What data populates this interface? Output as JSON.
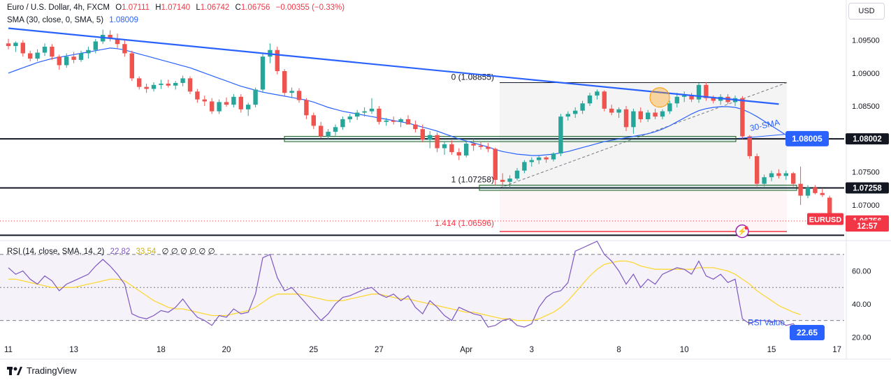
{
  "header": {
    "symbol": "Euro / U.S. Dollar, 4h, FXCM",
    "open_label": "O",
    "open": "1.07111",
    "high_label": "H",
    "high": "1.07140",
    "low_label": "L",
    "low": "1.06742",
    "close_label": "C",
    "close": "1.06756",
    "change": "−0.00355 (−0.33%)",
    "sma_label": "SMA (30, close, 0, SMA, 5)",
    "sma_value": "1.08009",
    "rsi_label": "RSI (14, close, SMA, 14, 2)",
    "rsi_value": "22.82",
    "rsi_ma_value": "33.54",
    "rsi_extra": "∅ ∅ ∅ ∅ ∅ ∅"
  },
  "currency_button": "USD",
  "brand": "TradingView",
  "colors": {
    "up": "#26a69a",
    "down": "#ef5350",
    "sma": "#2962ff",
    "trendline": "#2962ff",
    "rsi": "#7e57c2",
    "rsi_ma": "#fdd835",
    "fib_line": "#f23645"
  },
  "chart_data": [
    {
      "type": "candlestick",
      "title": "Euro / U.S. Dollar, 4h, FXCM",
      "x_tick_labels": [
        "11",
        "13",
        "18",
        "20",
        "25",
        "27",
        "Apr",
        "3",
        "8",
        "10",
        "15",
        "17"
      ],
      "y_tick_labels": [
        "1.09500",
        "1.09000",
        "1.08500",
        "1.07500",
        "1.07000"
      ],
      "ylim": [
        1.0648,
        1.0995
      ],
      "candles": [
        [
          1.0945,
          1.0952,
          1.0936,
          1.0941
        ],
        [
          1.0941,
          1.0948,
          1.0932,
          1.0946
        ],
        [
          1.0946,
          1.095,
          1.0925,
          1.093
        ],
        [
          1.093,
          1.0934,
          1.0918,
          1.0922
        ],
        [
          1.0922,
          1.0936,
          1.0918,
          1.0931
        ],
        [
          1.0931,
          1.0945,
          1.0926,
          1.094
        ],
        [
          1.094,
          1.0944,
          1.092,
          1.0925
        ],
        [
          1.0925,
          1.0928,
          1.0905,
          1.0912
        ],
        [
          1.0912,
          1.093,
          1.0908,
          1.0925
        ],
        [
          1.0925,
          1.0932,
          1.0915,
          1.092
        ],
        [
          1.092,
          1.0934,
          1.0917,
          1.093
        ],
        [
          1.093,
          1.094,
          1.0922,
          1.0935
        ],
        [
          1.0935,
          1.0952,
          1.093,
          1.0948
        ],
        [
          1.0948,
          1.0966,
          1.0944,
          1.0958
        ],
        [
          1.0958,
          1.0965,
          1.0948,
          1.0952
        ],
        [
          1.0952,
          1.096,
          1.0938,
          1.0944
        ],
        [
          1.0944,
          1.095,
          1.0925,
          1.093
        ],
        [
          1.093,
          1.0934,
          1.0888,
          1.0892
        ],
        [
          1.0892,
          1.0895,
          1.0875,
          1.0879
        ],
        [
          1.0879,
          1.0884,
          1.087,
          1.0876
        ],
        [
          1.0876,
          1.0886,
          1.0872,
          1.0882
        ],
        [
          1.0882,
          1.089,
          1.0876,
          1.0884
        ],
        [
          1.0884,
          1.089,
          1.0878,
          1.0881
        ],
        [
          1.0881,
          1.0888,
          1.0875,
          1.0885
        ],
        [
          1.0885,
          1.0896,
          1.088,
          1.0892
        ],
        [
          1.0892,
          1.0895,
          1.0868,
          1.0872
        ],
        [
          1.0872,
          1.0876,
          1.0855,
          1.086
        ],
        [
          1.086,
          1.0866,
          1.085,
          1.0857
        ],
        [
          1.0857,
          1.0862,
          1.0838,
          1.0842
        ],
        [
          1.0842,
          1.086,
          1.0838,
          1.0856
        ],
        [
          1.0856,
          1.0863,
          1.0849,
          1.0852
        ],
        [
          1.0852,
          1.0868,
          1.0848,
          1.0864
        ],
        [
          1.0864,
          1.0868,
          1.084,
          1.0845
        ],
        [
          1.0845,
          1.0855,
          1.0835,
          1.0852
        ],
        [
          1.0852,
          1.0878,
          1.0848,
          1.0875
        ],
        [
          1.0875,
          1.093,
          1.087,
          1.0925
        ],
        [
          1.0925,
          1.0945,
          1.0915,
          1.0935
        ],
        [
          1.0935,
          1.094,
          1.0898,
          1.0903
        ],
        [
          1.0903,
          1.0906,
          1.0865,
          1.087
        ],
        [
          1.087,
          1.0878,
          1.0862,
          1.0873
        ],
        [
          1.0873,
          1.0877,
          1.0855,
          1.0859
        ],
        [
          1.0859,
          1.0862,
          1.083,
          1.0836
        ],
        [
          1.0836,
          1.084,
          1.0815,
          1.082
        ],
        [
          1.082,
          1.0826,
          1.0801,
          1.0804
        ],
        [
          1.0804,
          1.0815,
          1.08,
          1.0811
        ],
        [
          1.0811,
          1.0822,
          1.0805,
          1.0818
        ],
        [
          1.0818,
          1.0834,
          1.0814,
          1.083
        ],
        [
          1.083,
          1.0838,
          1.0825,
          1.0834
        ],
        [
          1.0834,
          1.0844,
          1.0829,
          1.084
        ],
        [
          1.084,
          1.0848,
          1.0834,
          1.0842
        ],
        [
          1.0842,
          1.0862,
          1.0838,
          1.0846
        ],
        [
          1.0846,
          1.085,
          1.0822,
          1.0826
        ],
        [
          1.0826,
          1.0832,
          1.082,
          1.0828
        ],
        [
          1.0828,
          1.0834,
          1.0822,
          1.0826
        ],
        [
          1.0826,
          1.0832,
          1.0818,
          1.083
        ],
        [
          1.083,
          1.0836,
          1.0824,
          1.0822
        ],
        [
          1.0822,
          1.0828,
          1.081,
          1.0815
        ],
        [
          1.0815,
          1.0822,
          1.0795,
          1.0799
        ],
        [
          1.0799,
          1.0812,
          1.0786,
          1.0806
        ],
        [
          1.0806,
          1.081,
          1.078,
          1.0786
        ],
        [
          1.0786,
          1.0796,
          1.0776,
          1.0792
        ],
        [
          1.0792,
          1.0798,
          1.0776,
          1.078
        ],
        [
          1.078,
          1.0786,
          1.0768,
          1.0775
        ],
        [
          1.0775,
          1.0798,
          1.0772,
          1.0793
        ],
        [
          1.0793,
          1.08,
          1.0782,
          1.079
        ],
        [
          1.079,
          1.0795,
          1.0784,
          1.0788
        ],
        [
          1.0788,
          1.0794,
          1.078,
          1.0785
        ],
        [
          1.0785,
          1.0787,
          1.073,
          1.0738
        ],
        [
          1.0738,
          1.0748,
          1.0728,
          1.0735
        ],
        [
          1.0735,
          1.0745,
          1.0726,
          1.074
        ],
        [
          1.074,
          1.0756,
          1.0737,
          1.0752
        ],
        [
          1.0752,
          1.0768,
          1.0748,
          1.0765
        ],
        [
          1.0765,
          1.0772,
          1.0758,
          1.0768
        ],
        [
          1.0768,
          1.0776,
          1.0762,
          1.0772
        ],
        [
          1.0772,
          1.0774,
          1.0764,
          1.0769
        ],
        [
          1.0769,
          1.078,
          1.0766,
          1.0778
        ],
        [
          1.0778,
          1.0838,
          1.0774,
          1.0834
        ],
        [
          1.0834,
          1.0842,
          1.0828,
          1.0838
        ],
        [
          1.0838,
          1.0848,
          1.0832,
          1.0843
        ],
        [
          1.0843,
          1.0858,
          1.0838,
          1.0854
        ],
        [
          1.0854,
          1.087,
          1.085,
          1.0866
        ],
        [
          1.0866,
          1.0875,
          1.086,
          1.0872
        ],
        [
          1.0872,
          1.0874,
          1.0842,
          1.0846
        ],
        [
          1.0846,
          1.0852,
          1.0836,
          1.084
        ],
        [
          1.084,
          1.0848,
          1.0832,
          1.0845
        ],
        [
          1.0845,
          1.085,
          1.0812,
          1.0818
        ],
        [
          1.0818,
          1.0846,
          1.0808,
          1.0842
        ],
        [
          1.0842,
          1.0848,
          1.0825,
          1.083
        ],
        [
          1.083,
          1.0844,
          1.0826,
          1.084
        ],
        [
          1.084,
          1.0846,
          1.083,
          1.0834
        ],
        [
          1.0834,
          1.0845,
          1.083,
          1.0842
        ],
        [
          1.0842,
          1.0858,
          1.0838,
          1.0854
        ],
        [
          1.0854,
          1.087,
          1.0848,
          1.0864
        ],
        [
          1.0864,
          1.0872,
          1.0856,
          1.0866
        ],
        [
          1.0866,
          1.087,
          1.0856,
          1.086
        ],
        [
          1.086,
          1.0885,
          1.0855,
          1.0882
        ],
        [
          1.0882,
          1.0886,
          1.0858,
          1.0862
        ],
        [
          1.0862,
          1.0866,
          1.0854,
          1.0858
        ],
        [
          1.0858,
          1.0868,
          1.0852,
          1.0864
        ],
        [
          1.0864,
          1.0868,
          1.0853,
          1.0856
        ],
        [
          1.0856,
          1.0866,
          1.085,
          1.0862
        ],
        [
          1.0862,
          1.0865,
          1.08,
          1.0804
        ],
        [
          1.0804,
          1.0806,
          1.077,
          1.0774
        ],
        [
          1.0774,
          1.0778,
          1.0728,
          1.0732
        ],
        [
          1.0732,
          1.0746,
          1.0728,
          1.0742
        ],
        [
          1.0742,
          1.0752,
          1.0736,
          1.0748
        ],
        [
          1.0748,
          1.0754,
          1.074,
          1.0744
        ],
        [
          1.0744,
          1.0752,
          1.0738,
          1.0748
        ],
        [
          1.0748,
          1.075,
          1.0728,
          1.0732
        ],
        [
          1.0732,
          1.0758,
          1.07,
          1.0714
        ],
        [
          1.0714,
          1.073,
          1.071,
          1.0726
        ],
        [
          1.0726,
          1.073,
          1.0716,
          1.0718
        ],
        [
          1.0718,
          1.0724,
          1.0712,
          1.0715
        ],
        [
          1.0711,
          1.0714,
          1.0674,
          1.0676
        ]
      ],
      "series": [
        {
          "name": "SMA (30, close, 0, SMA, 5)",
          "values": [
            1.09,
            1.0904,
            1.0908,
            1.0912,
            1.0916,
            1.0919,
            1.0922,
            1.0924,
            1.0926,
            1.0928,
            1.093,
            1.0932,
            1.0934,
            1.0936,
            1.0938,
            1.0937,
            1.0935,
            1.0932,
            1.0929,
            1.0926,
            1.0923,
            1.092,
            1.0917,
            1.0914,
            1.0911,
            1.0908,
            1.0904,
            1.09,
            1.0896,
            1.0892,
            1.0888,
            1.0884,
            1.088,
            1.0877,
            1.0874,
            1.0871,
            1.0869,
            1.0867,
            1.0865,
            1.0863,
            1.0861,
            1.0859,
            1.0856,
            1.0852,
            1.0848,
            1.0845,
            1.0842,
            1.084,
            1.0838,
            1.0836,
            1.0834,
            1.0832,
            1.083,
            1.0828,
            1.0826,
            1.0824,
            1.0821,
            1.0818,
            1.0815,
            1.0812,
            1.0808,
            1.0804,
            1.08,
            1.0797,
            1.0794,
            1.0791,
            1.0788,
            1.0784,
            1.0781,
            1.0779,
            1.0777,
            1.0776,
            1.0775,
            1.0775,
            1.0776,
            1.0777,
            1.0779,
            1.0781,
            1.0784,
            1.0787,
            1.079,
            1.0793,
            1.0796,
            1.0798,
            1.08,
            1.0802,
            1.0804,
            1.0806,
            1.0808,
            1.0811,
            1.0815,
            1.082,
            1.0826,
            1.0832,
            1.0838,
            1.0843,
            1.0846,
            1.0848,
            1.0849,
            1.0849,
            1.0848,
            1.0845,
            1.084,
            1.0834,
            1.0827,
            1.082,
            1.0813,
            1.0806,
            1.0801
          ]
        },
        {
          "name": "trendline",
          "points": [
            [
              0,
              1.0968
            ],
            [
              106,
              1.0853
            ]
          ]
        }
      ],
      "horizontal_levels": [
        1.08002,
        1.07258,
        1.0654
      ],
      "fibonacci": {
        "levels": [
          {
            "label": "0 (1.08855)",
            "value": 1.08855
          },
          {
            "label": "1 (1.07258)",
            "value": 1.07258
          },
          {
            "label": "1.414 (1.06596)",
            "value": 1.06596
          }
        ]
      },
      "price_badges": [
        {
          "label": "1.08005",
          "value": 1.08005,
          "color": "#2962ff"
        },
        {
          "label": "1.08002",
          "value": 1.08002,
          "color": "#131722"
        },
        {
          "label": "1.07258",
          "value": 1.07258,
          "color": "#131722"
        },
        {
          "label": "EURUSD",
          "value": 1.0678,
          "color": "#f23645"
        },
        {
          "label": "1.06756",
          "value": 1.06756,
          "color": "#f23645"
        },
        {
          "label": "12:57",
          "value": 1.0668,
          "color": "#f23645"
        }
      ],
      "annotations": [
        "30-SMA"
      ]
    },
    {
      "type": "line",
      "title": "RSI (14, close, SMA, 14, 2)",
      "y_tick_labels": [
        "60.00",
        "40.00",
        "20.00"
      ],
      "ylim": [
        18,
        78
      ],
      "bands": [
        70,
        50,
        30
      ],
      "series": [
        {
          "name": "RSI",
          "values": [
            62,
            58,
            60,
            55,
            52,
            57,
            54,
            48,
            52,
            54,
            56,
            58,
            63,
            67,
            63,
            58,
            52,
            34,
            32,
            31,
            33,
            36,
            35,
            38,
            43,
            37,
            32,
            30,
            27,
            33,
            32,
            37,
            34,
            35,
            46,
            68,
            70,
            56,
            48,
            50,
            45,
            40,
            35,
            30,
            34,
            40,
            44,
            45,
            47,
            49,
            50,
            46,
            44,
            46,
            42,
            45,
            38,
            34,
            42,
            38,
            33,
            30,
            38,
            36,
            34,
            33,
            26,
            27,
            30,
            31,
            27,
            26,
            28,
            38,
            44,
            47,
            48,
            53,
            72,
            74,
            76,
            78,
            70,
            66,
            60,
            52,
            58,
            50,
            55,
            52,
            58,
            60,
            62,
            61,
            58,
            66,
            57,
            55,
            58,
            53,
            55,
            31,
            28,
            30,
            30,
            29,
            30,
            27,
            28,
            22.82
          ]
        },
        {
          "name": "RSI-based MA",
          "values": [
            55,
            55,
            54,
            53,
            52,
            51,
            50,
            50,
            50,
            50,
            51,
            52,
            53,
            54,
            55,
            55,
            54,
            51,
            48,
            45,
            42,
            40,
            38,
            37,
            37,
            36,
            35,
            34,
            33,
            33,
            33,
            34,
            35,
            36,
            38,
            41,
            44,
            46,
            46,
            46,
            46,
            45,
            44,
            43,
            42,
            42,
            42,
            43,
            44,
            45,
            46,
            46,
            45,
            44,
            43,
            43,
            42,
            41,
            40,
            39,
            38,
            37,
            36,
            35,
            35,
            34,
            33,
            32,
            31,
            31,
            30,
            30,
            30,
            31,
            33,
            35,
            38,
            42,
            47,
            52,
            57,
            61,
            64,
            65,
            66,
            66,
            65,
            63,
            62,
            61,
            61,
            61,
            61,
            61,
            61,
            62,
            62,
            62,
            61,
            60,
            58,
            55,
            52,
            48,
            45,
            42,
            39,
            37,
            35,
            33.54
          ]
        }
      ],
      "annotations": [
        "RSI Value"
      ],
      "price_badges": [
        {
          "label": "22.65",
          "value": 22.65,
          "color": "#2962ff"
        }
      ]
    }
  ]
}
